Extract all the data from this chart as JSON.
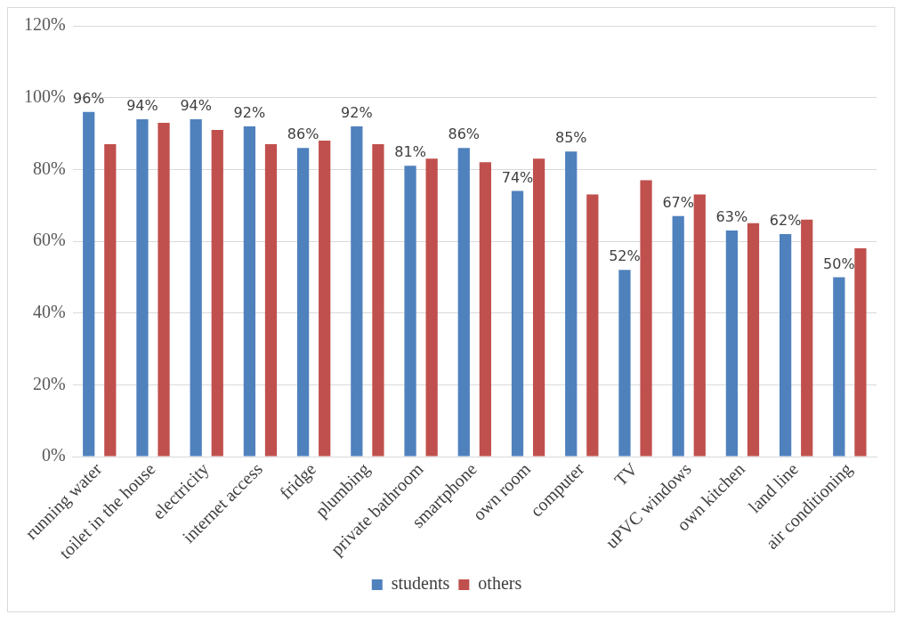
{
  "chart_data": {
    "type": "bar",
    "categories": [
      "running water",
      "toilet in the house",
      "electricity",
      "internet access",
      "fridge",
      "plumbing",
      "private bathroom",
      "smartphone",
      "own room",
      "computer",
      "TV",
      "uPVC windows",
      "own kitchen",
      "land line",
      "air conditioning"
    ],
    "series": [
      {
        "name": "students",
        "color": "#4f81bd",
        "values": [
          96,
          94,
          94,
          92,
          86,
          92,
          81,
          86,
          74,
          85,
          52,
          67,
          63,
          62,
          50
        ],
        "value_labels": [
          "96%",
          "94%",
          "94%",
          "92%",
          "86%",
          "92%",
          "81%",
          "86%",
          "74%",
          "85%",
          "52%",
          "67%",
          "63%",
          "62%",
          "50%"
        ]
      },
      {
        "name": "others",
        "color": "#c0504d",
        "values": [
          87,
          93,
          91,
          87,
          88,
          87,
          83,
          82,
          83,
          73,
          77,
          73,
          65,
          66,
          58
        ]
      }
    ],
    "ylim": [
      0,
      120
    ],
    "yticks": [
      {
        "value": 0,
        "label": "0%"
      },
      {
        "value": 20,
        "label": "20%"
      },
      {
        "value": 40,
        "label": "40%"
      },
      {
        "value": 60,
        "label": "60%"
      },
      {
        "value": 80,
        "label": "80%"
      },
      {
        "value": 100,
        "label": "100%"
      },
      {
        "value": 120,
        "label": "120%"
      }
    ],
    "grid": "y",
    "legend": "bottom"
  }
}
